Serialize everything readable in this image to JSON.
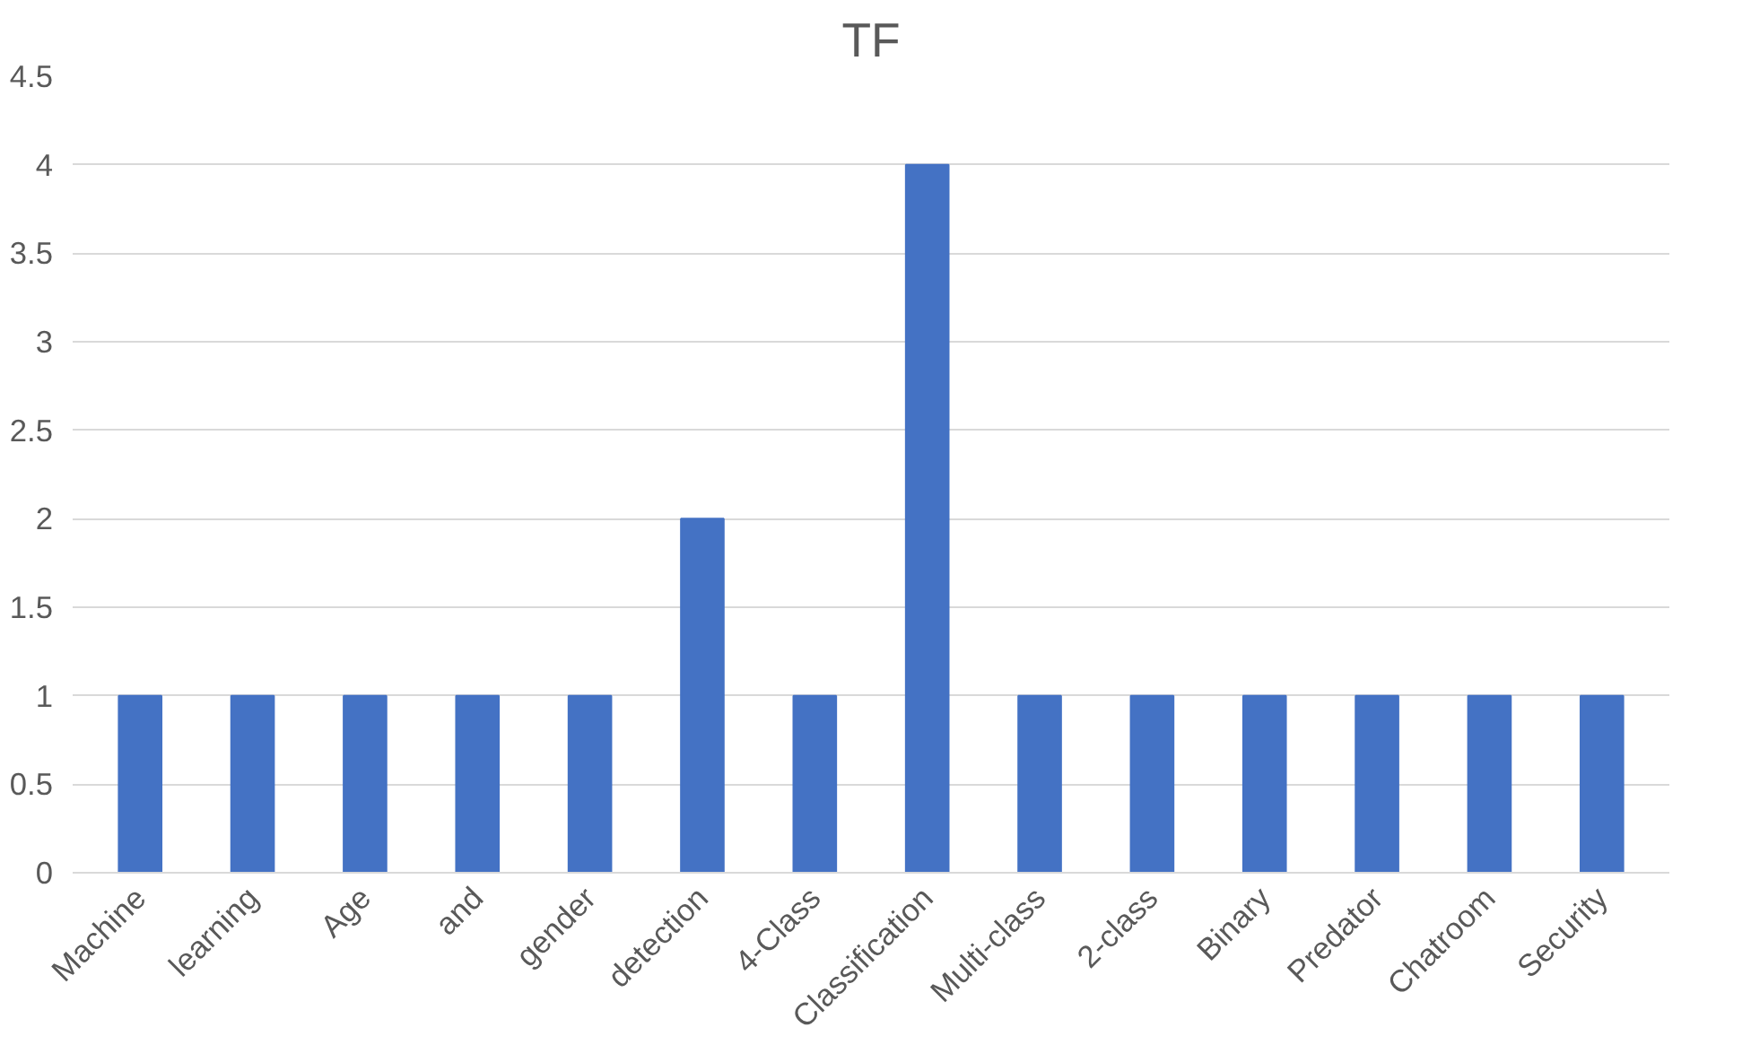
{
  "chart_data": {
    "type": "bar",
    "title": "TF",
    "categories": [
      "Machine",
      "learning",
      "Age",
      "and",
      "gender",
      "detection",
      "4-Class",
      "Classification",
      "Multi-class",
      "2-class",
      "Binary",
      "Predator",
      "Chatroom",
      "Security"
    ],
    "values": [
      1,
      1,
      1,
      1,
      1,
      2,
      1,
      4,
      1,
      1,
      1,
      1,
      1,
      1
    ],
    "color": "#4472c4",
    "ylim": [
      0,
      4.5
    ],
    "yticks": [
      0,
      0.5,
      1,
      1.5,
      2,
      2.5,
      3,
      3.5,
      4,
      4.5
    ],
    "grid": "y"
  }
}
